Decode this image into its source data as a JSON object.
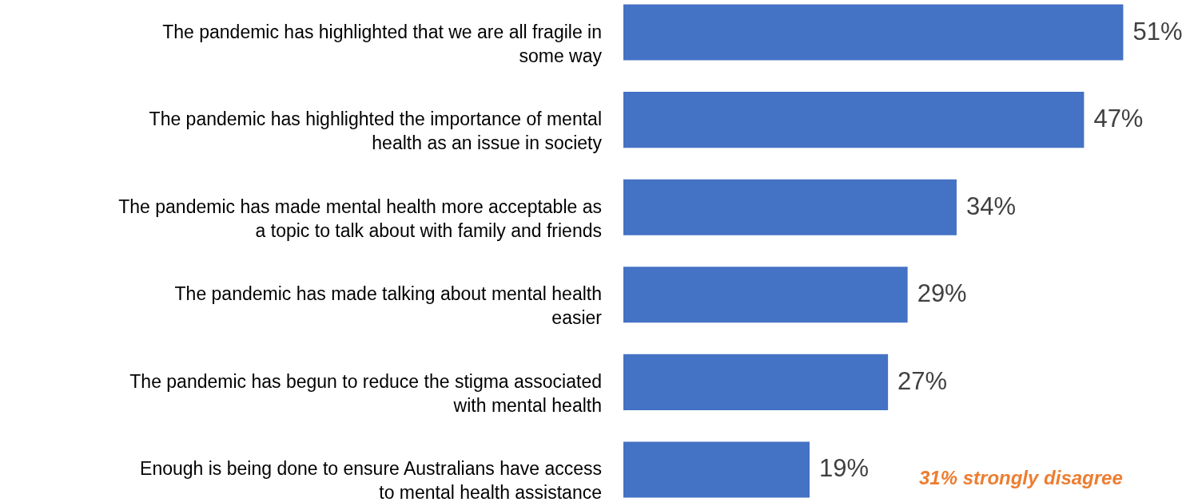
{
  "chart_data": {
    "type": "bar",
    "orientation": "horizontal",
    "categories": [
      "The pandemic has highlighted that we are all fragile in some way",
      "The pandemic has highlighted the importance of mental health as an issue in society",
      "The pandemic has made mental health more acceptable as a topic to talk about with family and friends",
      "The pandemic has made talking about mental health easier",
      "The pandemic has begun to reduce the stigma associated with mental health",
      "Enough is being done to ensure Australians have access to mental health assistance"
    ],
    "values": [
      51,
      47,
      34,
      29,
      27,
      19
    ],
    "value_labels": [
      "51%",
      "47%",
      "34%",
      "29%",
      "27%",
      "19%"
    ],
    "color": "#4472c4",
    "annotations": [
      "31% strongly disagree"
    ]
  }
}
